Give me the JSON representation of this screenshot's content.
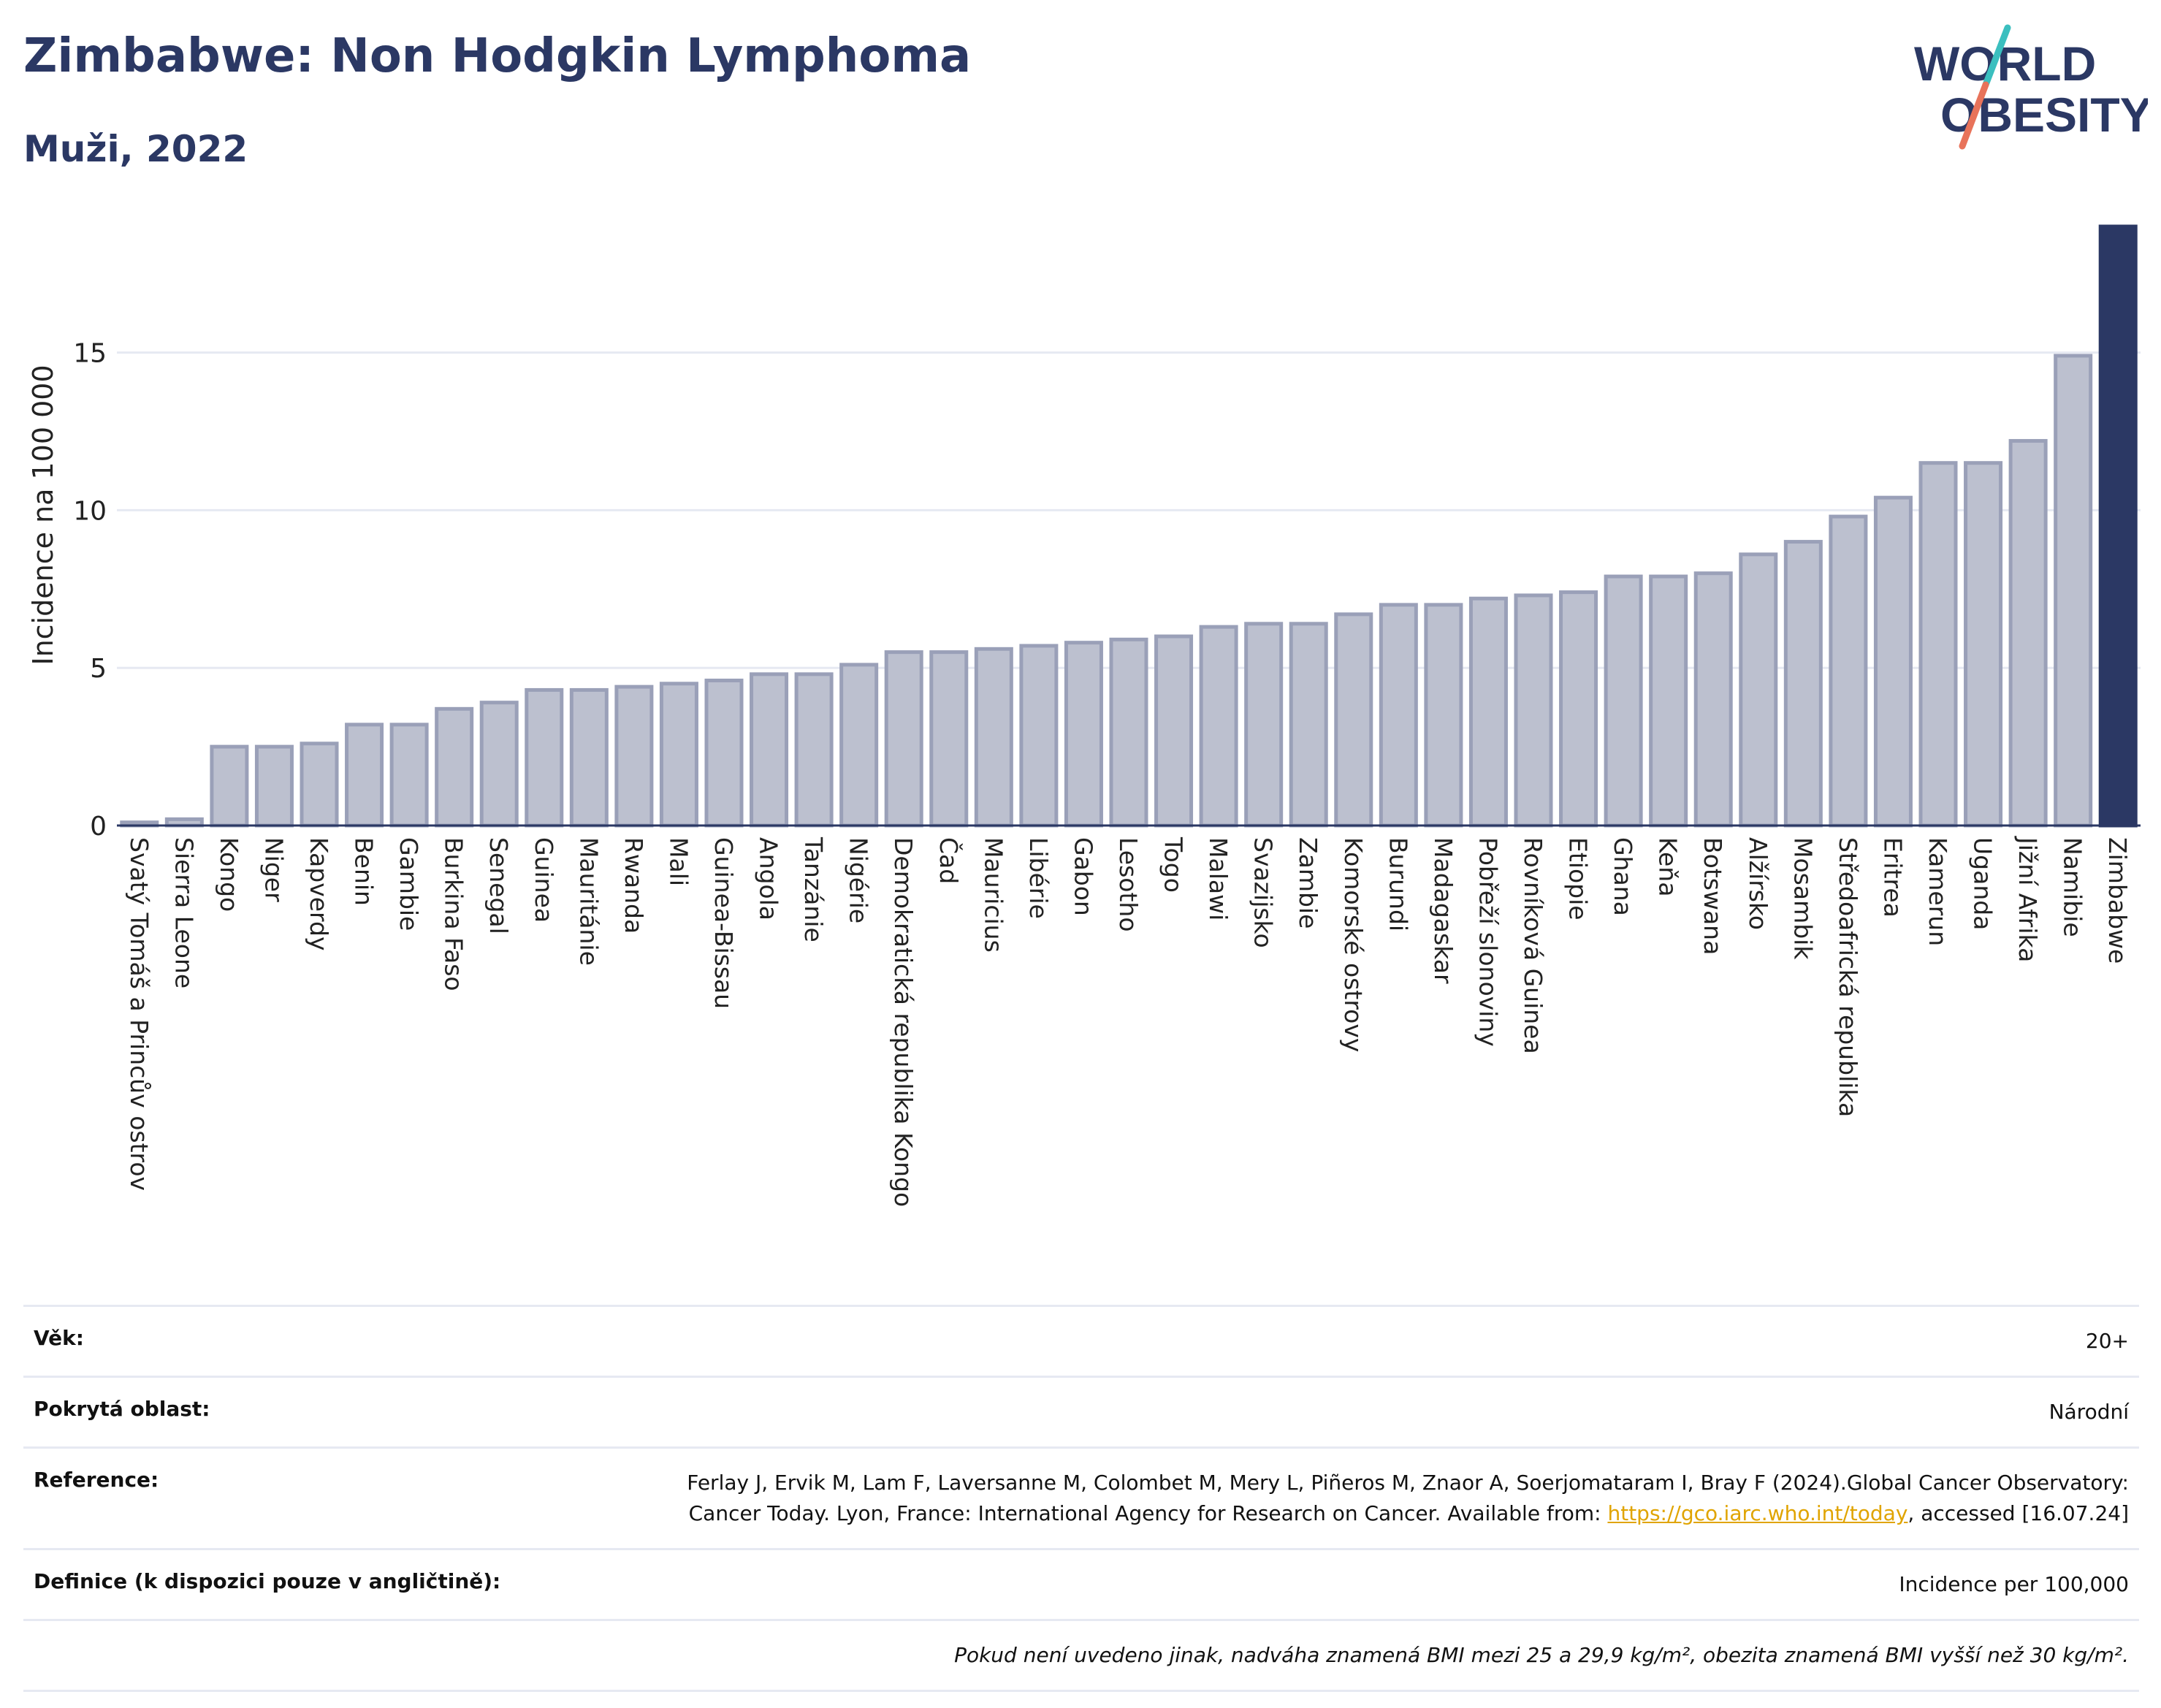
{
  "header": {
    "title": "Zimbabwe: Non Hodgkin Lymphoma",
    "subtitle": "Muži, 2022"
  },
  "logo": {
    "line1": "WORLD",
    "line2": "OBESITY",
    "colors": {
      "text": "#2b3864",
      "slash_top": "#3bbfbf",
      "slash_bottom": "#e8735a"
    }
  },
  "colors": {
    "bar": "#bcc0cf",
    "bar_stroke": "#9aa0b8",
    "highlight": "#2b3864",
    "grid": "#e6e9f2",
    "axis_text": "#222222"
  },
  "chart_data": {
    "type": "bar",
    "ylabel": "Incidence na 100 000",
    "ylim": [
      0,
      19
    ],
    "yticks": [
      0,
      5,
      10,
      15
    ],
    "grid": true,
    "highlight_category": "Zimbabwe",
    "categories": [
      "Svatý Tomáš a Princův ostrov",
      "Sierra Leone",
      "Kongo",
      "Niger",
      "Kapverdy",
      "Benin",
      "Gambie",
      "Burkina Faso",
      "Senegal",
      "Guinea",
      "Mauritánie",
      "Rwanda",
      "Mali",
      "Guinea-Bissau",
      "Angola",
      "Tanzánie",
      "Nigérie",
      "Demokratická republika Kongo",
      "Čad",
      "Mauricius",
      "Libérie",
      "Gabon",
      "Lesotho",
      "Togo",
      "Malawi",
      "Svazijsko",
      "Zambie",
      "Komorské ostrovy",
      "Burundi",
      "Madagaskar",
      "Pobřeží slonoviny",
      "Rovníková Guinea",
      "Etiopie",
      "Ghana",
      "Keňa",
      "Botswana",
      "Alžírsko",
      "Mosambik",
      "Středoafrická republika",
      "Eritrea",
      "Kamerun",
      "Uganda",
      "Jižní Afrika",
      "Namibie",
      "Zimbabwe"
    ],
    "values": [
      0.1,
      0.2,
      2.5,
      2.5,
      2.6,
      3.2,
      3.2,
      3.7,
      3.9,
      4.3,
      4.3,
      4.4,
      4.5,
      4.6,
      4.8,
      4.8,
      5.1,
      5.5,
      5.5,
      5.6,
      5.7,
      5.8,
      5.9,
      6.0,
      6.3,
      6.4,
      6.4,
      6.7,
      7.0,
      7.0,
      7.2,
      7.3,
      7.4,
      7.9,
      7.9,
      8.0,
      8.6,
      9.0,
      9.8,
      10.4,
      11.5,
      11.5,
      12.2,
      14.9,
      19.0
    ]
  },
  "meta": {
    "age_label": "Věk:",
    "age_value": "20+",
    "coverage_label": "Pokrytá oblast:",
    "coverage_value": "Národní",
    "reference_label": "Reference:",
    "reference_text": "Ferlay J, Ervik M, Lam F, Laversanne M, Colombet M, Mery L, Piñeros M, Znaor A, Soerjomataram I, Bray F (2024).Global Cancer Observatory: Cancer Today. Lyon, France: International Agency for Research on Cancer. Available from:",
    "reference_link": "https://gco.iarc.who.int/today",
    "reference_suffix": ", accessed [16.07.24]",
    "definition_label": "Definice (k dispozici pouze v angličtině):",
    "definition_value": "Incidence per 100,000",
    "note": "Pokud není uvedeno jinak, nadváha znamená BMI mezi 25 a 29,9 kg/m², obezita znamená BMI vyšší než 30 kg/m²."
  }
}
